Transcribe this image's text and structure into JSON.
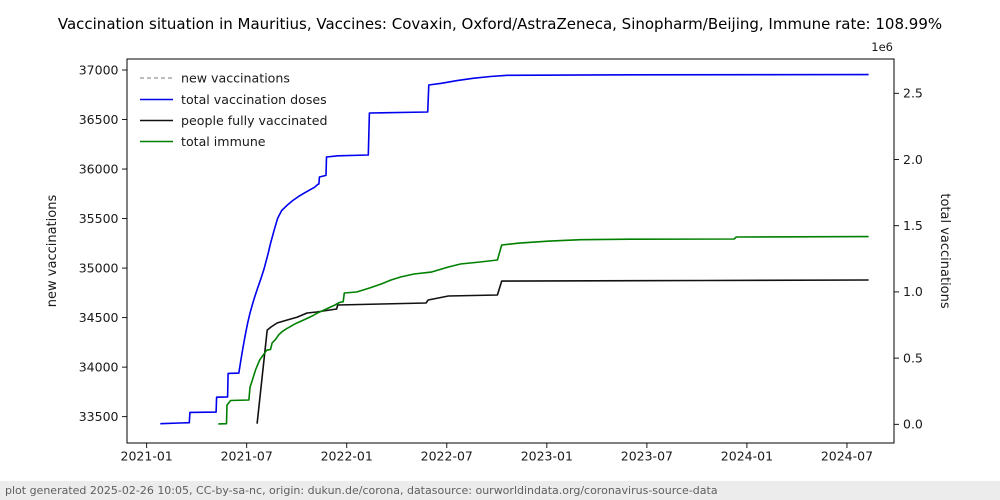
{
  "title": "Vaccination situation in Mauritius, Vaccines: Covaxin, Oxford/AstraZeneca, Sinopharm/Beijing, Immune rate: 108.99%",
  "footer": "plot generated 2025-02-26 10:05, CC-by-sa-nc, origin: dukun.de/corona, datasource: ourworldindata.org/coronavirus-source-data",
  "legend": [
    {
      "label": "new vaccinations",
      "color": "#a6a6a6",
      "dash": true
    },
    {
      "label": "total vaccination doses",
      "color": "#0000ee",
      "dash": false
    },
    {
      "label": "people fully vaccinated",
      "color": "#111111",
      "dash": false
    },
    {
      "label": "total immune",
      "color": "#008000",
      "dash": false
    }
  ],
  "chart_data": {
    "type": "line",
    "title": "Vaccination situation in Mauritius, Vaccines: Covaxin, Oxford/AstraZeneca, Sinopharm/Beijing, Immune rate: 108.99%",
    "grid": false,
    "legend_position": "upper left",
    "left_axis": {
      "label": "new vaccinations",
      "ticks": [
        33500,
        34000,
        34500,
        35000,
        35500,
        36000,
        36500,
        37000
      ],
      "range": [
        33234,
        37111
      ]
    },
    "right_axis": {
      "label": "total vaccinations",
      "offset_label": "1e6",
      "tick_labels": [
        "0.0",
        "0.5",
        "1.0",
        "1.5",
        "2.0",
        "2.5"
      ],
      "range": [
        -141000,
        2759000
      ]
    },
    "x_axis": {
      "ticks": [
        {
          "date": "2021-01-01",
          "label": "2021-01"
        },
        {
          "date": "2021-07-01",
          "label": "2021-07"
        },
        {
          "date": "2022-01-01",
          "label": "2022-01"
        },
        {
          "date": "2022-07-01",
          "label": "2022-07"
        },
        {
          "date": "2023-01-01",
          "label": "2023-01"
        },
        {
          "date": "2023-07-01",
          "label": "2023-07"
        },
        {
          "date": "2024-01-01",
          "label": "2024-01"
        },
        {
          "date": "2024-07-01",
          "label": "2024-07"
        }
      ],
      "range": [
        "2020-11-26",
        "2024-09-26"
      ]
    },
    "series": [
      {
        "name": "new vaccinations",
        "color": "#a6a6a6",
        "dash": true,
        "axis": "left",
        "points": []
      },
      {
        "name": "total vaccination doses",
        "color": "#0000ee",
        "dash": false,
        "axis": "right",
        "points": [
          [
            "2021-01-26",
            5000
          ],
          [
            "2021-03-01",
            10000
          ],
          [
            "2021-03-18",
            12000
          ],
          [
            "2021-03-19",
            90000
          ],
          [
            "2021-05-06",
            92000
          ],
          [
            "2021-05-07",
            205000
          ],
          [
            "2021-05-27",
            207000
          ],
          [
            "2021-05-28",
            385000
          ],
          [
            "2021-06-17",
            387000
          ],
          [
            "2021-06-21",
            490000
          ],
          [
            "2021-06-25",
            590000
          ],
          [
            "2021-06-29",
            680000
          ],
          [
            "2021-07-03",
            770000
          ],
          [
            "2021-07-07",
            840000
          ],
          [
            "2021-07-11",
            900000
          ],
          [
            "2021-07-15",
            955000
          ],
          [
            "2021-07-21",
            1030000
          ],
          [
            "2021-07-27",
            1100000
          ],
          [
            "2021-08-02",
            1170000
          ],
          [
            "2021-08-09",
            1280000
          ],
          [
            "2021-08-15",
            1380000
          ],
          [
            "2021-08-21",
            1470000
          ],
          [
            "2021-08-27",
            1555000
          ],
          [
            "2021-09-04",
            1615000
          ],
          [
            "2021-09-14",
            1655000
          ],
          [
            "2021-09-24",
            1690000
          ],
          [
            "2021-10-04",
            1720000
          ],
          [
            "2021-10-14",
            1745000
          ],
          [
            "2021-10-24",
            1768000
          ],
          [
            "2021-11-03",
            1790000
          ],
          [
            "2021-11-09",
            1812000
          ],
          [
            "2021-11-11",
            1815000
          ],
          [
            "2021-11-12",
            1868000
          ],
          [
            "2021-11-24",
            1880000
          ],
          [
            "2021-11-25",
            2019000
          ],
          [
            "2021-12-15",
            2028000
          ],
          [
            "2022-02-10",
            2034000
          ],
          [
            "2022-02-12",
            2351000
          ],
          [
            "2022-05-27",
            2359000
          ],
          [
            "2022-05-29",
            2563000
          ],
          [
            "2022-06-20",
            2575000
          ],
          [
            "2022-07-20",
            2596000
          ],
          [
            "2022-08-20",
            2614000
          ],
          [
            "2022-09-20",
            2627000
          ],
          [
            "2022-10-20",
            2636000
          ],
          [
            "2023-04-01",
            2639000
          ],
          [
            "2024-08-10",
            2641000
          ]
        ]
      },
      {
        "name": "people fully vaccinated",
        "color": "#111111",
        "dash": false,
        "axis": "right",
        "points": [
          [
            "2021-07-20",
            5000
          ],
          [
            "2021-08-08",
            712000
          ],
          [
            "2021-08-15",
            735000
          ],
          [
            "2021-08-26",
            765000
          ],
          [
            "2021-09-14",
            788000
          ],
          [
            "2021-10-02",
            810000
          ],
          [
            "2021-10-20",
            841000
          ],
          [
            "2021-11-07",
            848000
          ],
          [
            "2021-11-25",
            860000
          ],
          [
            "2021-12-13",
            871000
          ],
          [
            "2021-12-15",
            901000
          ],
          [
            "2022-03-03",
            909000
          ],
          [
            "2022-05-24",
            916000
          ],
          [
            "2022-05-28",
            939000
          ],
          [
            "2022-07-04",
            969000
          ],
          [
            "2022-10-02",
            977000
          ],
          [
            "2022-10-10",
            1082000
          ],
          [
            "2023-10-15",
            1086000
          ],
          [
            "2024-08-10",
            1090000
          ]
        ]
      },
      {
        "name": "total immune",
        "color": "#008000",
        "dash": false,
        "axis": "right",
        "points": [
          [
            "2021-05-10",
            3000
          ],
          [
            "2021-05-25",
            5000
          ],
          [
            "2021-05-26",
            145000
          ],
          [
            "2021-06-02",
            180000
          ],
          [
            "2021-07-05",
            184000
          ],
          [
            "2021-07-07",
            280000
          ],
          [
            "2021-07-11",
            330000
          ],
          [
            "2021-07-17",
            410000
          ],
          [
            "2021-07-21",
            450000
          ],
          [
            "2021-07-25",
            487000
          ],
          [
            "2021-07-31",
            522000
          ],
          [
            "2021-08-07",
            560000
          ],
          [
            "2021-08-14",
            565000
          ],
          [
            "2021-08-17",
            614000
          ],
          [
            "2021-08-23",
            640000
          ],
          [
            "2021-08-29",
            676000
          ],
          [
            "2021-09-05",
            700000
          ],
          [
            "2021-09-13",
            722000
          ],
          [
            "2021-09-21",
            741000
          ],
          [
            "2021-09-29",
            760000
          ],
          [
            "2021-10-07",
            776000
          ],
          [
            "2021-10-15",
            791000
          ],
          [
            "2021-10-23",
            806000
          ],
          [
            "2021-10-31",
            822000
          ],
          [
            "2021-11-08",
            840000
          ],
          [
            "2021-11-16",
            855000
          ],
          [
            "2021-11-24",
            870000
          ],
          [
            "2021-12-02",
            886000
          ],
          [
            "2021-12-10",
            901000
          ],
          [
            "2021-12-18",
            920000
          ],
          [
            "2021-12-25",
            926000
          ],
          [
            "2021-12-27",
            992000
          ],
          [
            "2022-01-19",
            999000
          ],
          [
            "2022-02-13",
            1030000
          ],
          [
            "2022-03-03",
            1060000
          ],
          [
            "2022-03-21",
            1090000
          ],
          [
            "2022-04-08",
            1113000
          ],
          [
            "2022-05-02",
            1135000
          ],
          [
            "2022-06-03",
            1150000
          ],
          [
            "2022-07-04",
            1188000
          ],
          [
            "2022-07-26",
            1211000
          ],
          [
            "2022-09-01",
            1226000
          ],
          [
            "2022-10-02",
            1241000
          ],
          [
            "2022-10-10",
            1354000
          ],
          [
            "2022-11-12",
            1369000
          ],
          [
            "2023-01-06",
            1384000
          ],
          [
            "2023-03-02",
            1394000
          ],
          [
            "2023-06-01",
            1398000
          ],
          [
            "2023-12-08",
            1400000
          ],
          [
            "2023-12-12",
            1415000
          ],
          [
            "2024-08-10",
            1418000
          ]
        ]
      }
    ]
  }
}
